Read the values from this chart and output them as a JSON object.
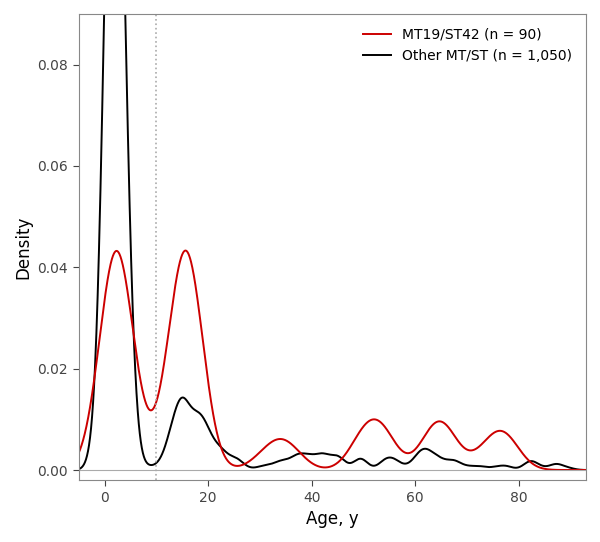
{
  "title": "",
  "xlabel": "Age, y",
  "ylabel": "Density",
  "vline_x": 10,
  "vline_color": "#aaaaaa",
  "hline_color": "#aaaaaa",
  "xlim": [
    -5,
    93
  ],
  "ylim": [
    -0.002,
    0.09
  ],
  "yticks": [
    0.0,
    0.02,
    0.04,
    0.06,
    0.08
  ],
  "xticks": [
    0,
    20,
    40,
    60,
    80
  ],
  "legend_labels": [
    "MT19/ST42 (n = 90)",
    "Other MT/ST (n = 1,050)"
  ],
  "red_color": "#cc0000",
  "black_color": "#000000",
  "background_color": "#ffffff",
  "line_width": 1.4
}
